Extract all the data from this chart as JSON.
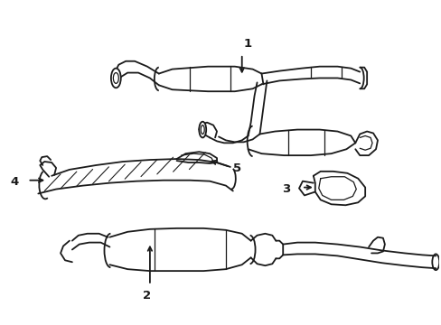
{
  "background_color": "#ffffff",
  "line_color": "#1a1a1a",
  "line_width": 1.3
}
